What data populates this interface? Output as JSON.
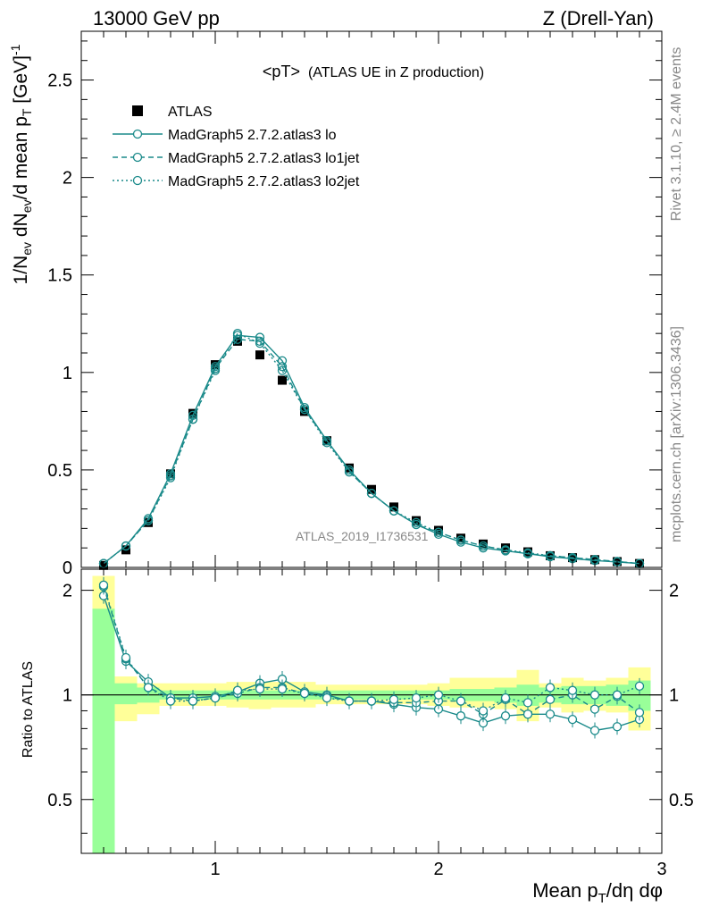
{
  "header": {
    "left": "13000 GeV pp",
    "right": "Z (Drell-Yan)"
  },
  "side_labels": {
    "rivet": "Rivet 3.1.10, ≥ 2.4M events",
    "mcplots": "mcplots.cern.ch [arXiv:1306.3436]"
  },
  "colors": {
    "mc": "#1a8a8a",
    "data": "#000000",
    "band_green": "#99ff99",
    "band_yellow": "#ffff99"
  },
  "chart_data": [
    {
      "type": "line",
      "title_main": "<pT>",
      "title_sub": "(ATLAS UE in Z production)",
      "ylabel": "1/N_ev dN_ev/d mean p_T [GeV]^-1",
      "watermark": "ATLAS_2019_I1736531",
      "xlim": [
        0.4,
        3.0
      ],
      "ylim": [
        0,
        2.75
      ],
      "ytick_labels": [
        "0",
        "0.5",
        "1",
        "1.5",
        "2",
        "2.5"
      ],
      "legend": {
        "placement": "top-left",
        "entries": [
          "ATLAS",
          "MadGraph5 2.7.2.atlas3 lo",
          "MadGraph5 2.7.2.atlas3 lo1jet",
          "MadGraph5 2.7.2.atlas3 lo2jet"
        ]
      },
      "x": [
        0.5,
        0.6,
        0.7,
        0.8,
        0.9,
        1.0,
        1.1,
        1.2,
        1.3,
        1.4,
        1.5,
        1.6,
        1.7,
        1.8,
        1.9,
        2.0,
        2.1,
        2.2,
        2.3,
        2.4,
        2.5,
        2.6,
        2.7,
        2.8,
        2.9
      ],
      "series": [
        {
          "name": "ATLAS",
          "style": "marker",
          "values": [
            0.01,
            0.09,
            0.23,
            0.48,
            0.79,
            1.04,
            1.16,
            1.09,
            0.96,
            0.8,
            0.65,
            0.51,
            0.4,
            0.31,
            0.24,
            0.19,
            0.15,
            0.12,
            0.1,
            0.08,
            0.06,
            0.05,
            0.04,
            0.03,
            0.02
          ]
        },
        {
          "name": "MadGraph5 2.7.2.atlas3 lo",
          "style": "solid",
          "values": [
            0.02,
            0.11,
            0.25,
            0.48,
            0.78,
            1.03,
            1.19,
            1.18,
            1.06,
            0.82,
            0.65,
            0.5,
            0.38,
            0.29,
            0.22,
            0.17,
            0.13,
            0.1,
            0.085,
            0.07,
            0.055,
            0.045,
            0.035,
            0.028,
            0.02
          ]
        },
        {
          "name": "MadGraph5 2.7.2.atlas3 lo1jet",
          "style": "dashed",
          "values": [
            0.02,
            0.11,
            0.24,
            0.47,
            0.76,
            1.02,
            1.17,
            1.16,
            1.03,
            0.81,
            0.65,
            0.49,
            0.38,
            0.29,
            0.22,
            0.18,
            0.14,
            0.11,
            0.09,
            0.07,
            0.06,
            0.05,
            0.04,
            0.03,
            0.02
          ]
        },
        {
          "name": "MadGraph5 2.7.2.atlas3 lo2jet",
          "style": "dotted",
          "values": [
            0.02,
            0.11,
            0.24,
            0.46,
            0.76,
            1.01,
            1.2,
            1.15,
            1.01,
            0.81,
            0.64,
            0.49,
            0.38,
            0.29,
            0.23,
            0.18,
            0.14,
            0.11,
            0.09,
            0.075,
            0.06,
            0.05,
            0.04,
            0.03,
            0.02
          ]
        }
      ]
    },
    {
      "type": "line",
      "ylabel": "Ratio to ATLAS",
      "xlabel": "Mean p_T/dη dφ",
      "xlim": [
        0.4,
        3.0
      ],
      "ylim": [
        0.35,
        2.3
      ],
      "ytick_labels": [
        "0.5",
        "1",
        "2"
      ],
      "xtick_labels": [
        "1",
        "2",
        "3"
      ],
      "bands": {
        "x_edges": [
          0.45,
          0.55,
          0.65,
          0.75,
          0.85,
          0.95,
          1.05,
          1.15,
          1.25,
          1.35,
          1.45,
          1.55,
          1.65,
          1.75,
          1.85,
          1.95,
          2.05,
          2.15,
          2.25,
          2.35,
          2.45,
          2.55,
          2.65,
          2.75,
          2.85,
          2.95
        ],
        "green": [
          [
            0.35,
            1.77
          ],
          [
            0.94,
            1.08
          ],
          [
            0.95,
            1.05
          ],
          [
            0.97,
            1.03
          ],
          [
            0.97,
            1.03
          ],
          [
            0.97,
            1.03
          ],
          [
            0.97,
            1.03
          ],
          [
            0.97,
            1.03
          ],
          [
            0.97,
            1.03
          ],
          [
            0.97,
            1.03
          ],
          [
            0.97,
            1.03
          ],
          [
            0.97,
            1.03
          ],
          [
            0.97,
            1.03
          ],
          [
            0.97,
            1.03
          ],
          [
            0.97,
            1.03
          ],
          [
            0.97,
            1.03
          ],
          [
            0.96,
            1.04
          ],
          [
            0.96,
            1.04
          ],
          [
            0.95,
            1.05
          ],
          [
            0.93,
            1.07
          ],
          [
            0.95,
            1.05
          ],
          [
            0.94,
            1.06
          ],
          [
            0.94,
            1.06
          ],
          [
            0.93,
            1.07
          ],
          [
            0.9,
            1.1
          ]
        ],
        "yellow": [
          [
            0.35,
            2.2
          ],
          [
            0.84,
            1.13
          ],
          [
            0.88,
            1.08
          ],
          [
            0.93,
            1.08
          ],
          [
            0.93,
            1.08
          ],
          [
            0.93,
            1.08
          ],
          [
            0.92,
            1.09
          ],
          [
            0.91,
            1.09
          ],
          [
            0.92,
            1.09
          ],
          [
            0.92,
            1.09
          ],
          [
            0.94,
            1.07
          ],
          [
            0.94,
            1.07
          ],
          [
            0.94,
            1.07
          ],
          [
            0.94,
            1.07
          ],
          [
            0.94,
            1.07
          ],
          [
            0.93,
            1.08
          ],
          [
            0.92,
            1.12
          ],
          [
            0.92,
            1.12
          ],
          [
            0.91,
            1.12
          ],
          [
            0.84,
            1.18
          ],
          [
            0.92,
            1.08
          ],
          [
            0.89,
            1.12
          ],
          [
            0.9,
            1.1
          ],
          [
            0.89,
            1.12
          ],
          [
            0.79,
            1.2
          ]
        ]
      },
      "x": [
        0.5,
        0.6,
        0.7,
        0.8,
        0.9,
        1.0,
        1.1,
        1.2,
        1.3,
        1.4,
        1.5,
        1.6,
        1.7,
        1.8,
        1.9,
        2.0,
        2.1,
        2.2,
        2.3,
        2.4,
        2.5,
        2.6,
        2.7,
        2.8,
        2.9
      ],
      "series": [
        {
          "name": "MadGraph5 2.7.2.atlas3 lo",
          "style": "solid",
          "values": [
            1.93,
            1.25,
            1.09,
            0.98,
            0.98,
            0.99,
            1.02,
            1.08,
            1.11,
            1.02,
            1.0,
            0.96,
            0.96,
            0.94,
            0.92,
            0.91,
            0.87,
            0.83,
            0.87,
            0.88,
            0.88,
            0.85,
            0.79,
            0.81,
            0.85
          ]
        },
        {
          "name": "MadGraph5 2.7.2.atlas3 lo1jet",
          "style": "dashed",
          "values": [
            2.05,
            1.27,
            1.05,
            0.98,
            0.96,
            0.98,
            1.01,
            1.05,
            1.05,
            1.01,
            0.99,
            0.96,
            0.96,
            0.95,
            0.95,
            0.96,
            0.96,
            0.88,
            0.97,
            0.88,
            0.97,
            1.0,
            0.91,
            0.99,
            0.89
          ]
        },
        {
          "name": "MadGraph5 2.7.2.atlas3 lo2jet",
          "style": "dotted",
          "values": [
            2.07,
            1.28,
            1.05,
            0.96,
            0.96,
            0.98,
            1.03,
            1.04,
            1.04,
            1.01,
            0.98,
            0.96,
            0.96,
            0.97,
            0.98,
            1.0,
            0.96,
            0.9,
            0.98,
            0.95,
            1.05,
            1.03,
            1.0,
            1.0,
            1.06
          ]
        }
      ]
    }
  ]
}
